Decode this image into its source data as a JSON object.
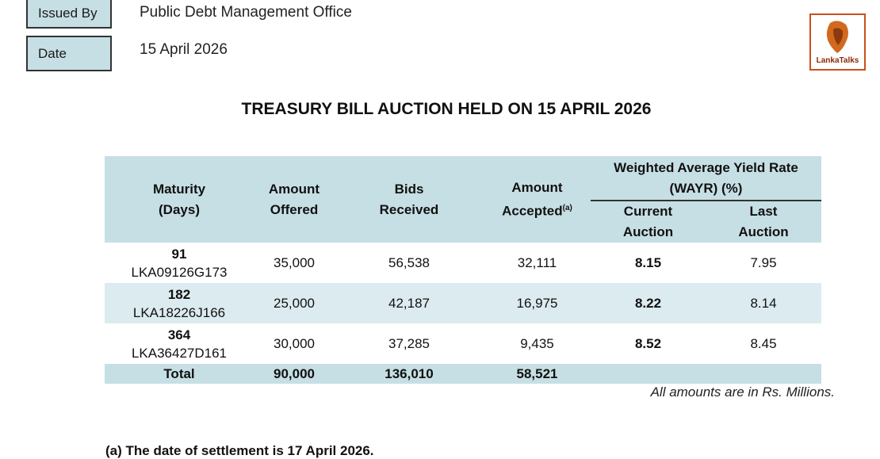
{
  "header": {
    "issued_by_label": "Issued By",
    "issued_by": "Public Debt Management Office",
    "date_label": "Date",
    "date": "15 April 2026"
  },
  "logo": {
    "text": "LankaTalks"
  },
  "title": "TREASURY BILL AUCTION HELD ON 15 APRIL 2026",
  "table": {
    "columns": [
      "Maturity\n(Days)",
      "Amount\nOffered",
      "Bids\nReceived",
      "Amount\nAccepted"
    ],
    "accepted_note": "(a)",
    "wayr_group": "Weighted Average Yield Rate\n(WAYR) (%)",
    "wayr_sub": [
      "Current\nAuction",
      "Last\nAuction"
    ],
    "rows": [
      {
        "maturity": "91",
        "isin": "LKA09126G173",
        "offered": "35,000",
        "bids": "56,538",
        "accepted": "32,111",
        "current": "8.15",
        "last": "7.95"
      },
      {
        "maturity": "182",
        "isin": "LKA18226J166",
        "offered": "25,000",
        "bids": "42,187",
        "accepted": "16,975",
        "current": "8.22",
        "last": "8.14"
      },
      {
        "maturity": "364",
        "isin": "LKA36427D161",
        "offered": "30,000",
        "bids": "37,285",
        "accepted": "9,435",
        "current": "8.52",
        "last": "8.45"
      }
    ],
    "total": {
      "label": "Total",
      "offered": "90,000",
      "bids": "136,010",
      "accepted": "58,521"
    }
  },
  "units_note": "All amounts are in Rs. Millions.",
  "footnote": "(a) The date of settlement is 17 April 2026."
}
